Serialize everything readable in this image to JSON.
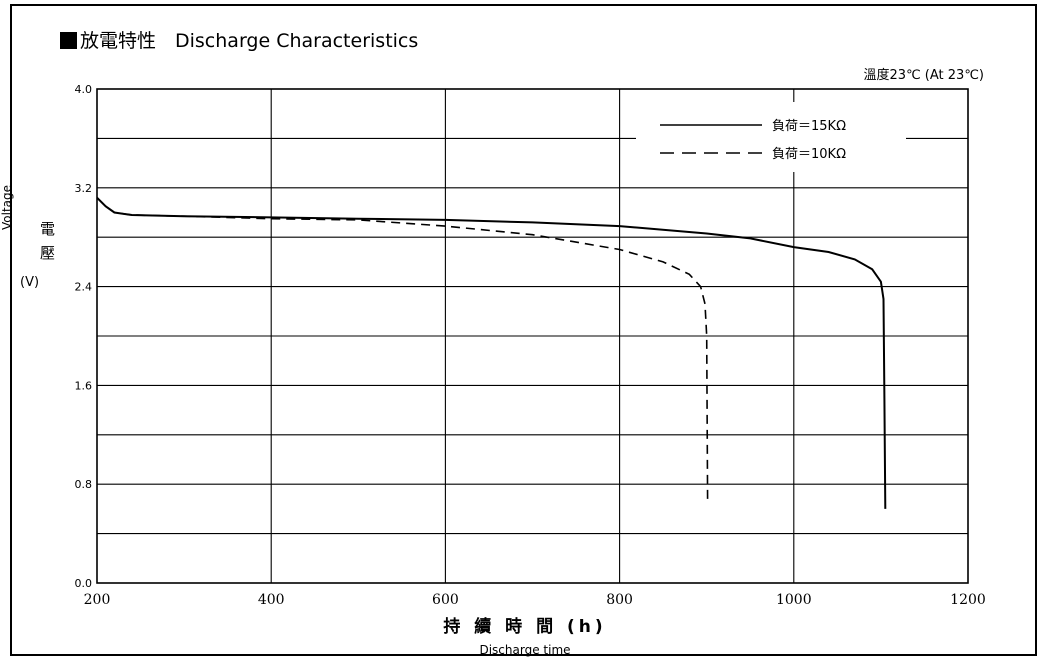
{
  "header": {
    "title": "放電特性　Discharge Characteristics",
    "temperature": "溫度23℃ (At 23℃)"
  },
  "axes": {
    "y_label_rotated": "Voltage",
    "y_label_cjk_1": "電",
    "y_label_cjk_2": "壓",
    "y_unit": "(V)",
    "x_label_cjk": "持 續 時 間 (h)",
    "x_label_en": "Discharge time"
  },
  "chart_data": {
    "type": "line",
    "title": "放電特性　Discharge Characteristics",
    "xlabel": "持 續 時 間 (h) Discharge time",
    "ylabel": "Voltage 電壓 (V)",
    "xlim": [
      200,
      1200
    ],
    "ylim": [
      0.0,
      4.0
    ],
    "x_ticks": [
      "200",
      "400",
      "600",
      "800",
      "1000",
      "1200"
    ],
    "y_ticks": [
      "0.0",
      "0.8",
      "1.6",
      "2.4",
      "3.2",
      "4.0"
    ],
    "grid": true,
    "legend_position": "top-right",
    "series": [
      {
        "name": "負荷＝15KΩ",
        "style": "solid",
        "points": [
          [
            200,
            3.12
          ],
          [
            210,
            3.05
          ],
          [
            220,
            3.0
          ],
          [
            240,
            2.98
          ],
          [
            300,
            2.97
          ],
          [
            400,
            2.96
          ],
          [
            500,
            2.95
          ],
          [
            600,
            2.94
          ],
          [
            700,
            2.92
          ],
          [
            800,
            2.89
          ],
          [
            900,
            2.83
          ],
          [
            950,
            2.79
          ],
          [
            1000,
            2.72
          ],
          [
            1040,
            2.68
          ],
          [
            1070,
            2.62
          ],
          [
            1090,
            2.54
          ],
          [
            1100,
            2.44
          ],
          [
            1103,
            2.3
          ],
          [
            1104,
            1.5
          ],
          [
            1105,
            0.6
          ]
        ]
      },
      {
        "name": "負荷＝10KΩ",
        "style": "dashed",
        "points": [
          [
            200,
            3.12
          ],
          [
            210,
            3.05
          ],
          [
            220,
            3.0
          ],
          [
            240,
            2.98
          ],
          [
            300,
            2.97
          ],
          [
            400,
            2.95
          ],
          [
            500,
            2.94
          ],
          [
            600,
            2.89
          ],
          [
            700,
            2.82
          ],
          [
            800,
            2.7
          ],
          [
            850,
            2.6
          ],
          [
            880,
            2.5
          ],
          [
            893,
            2.4
          ],
          [
            898,
            2.26
          ],
          [
            900,
            2.0
          ],
          [
            901,
            0.65
          ]
        ]
      }
    ]
  }
}
